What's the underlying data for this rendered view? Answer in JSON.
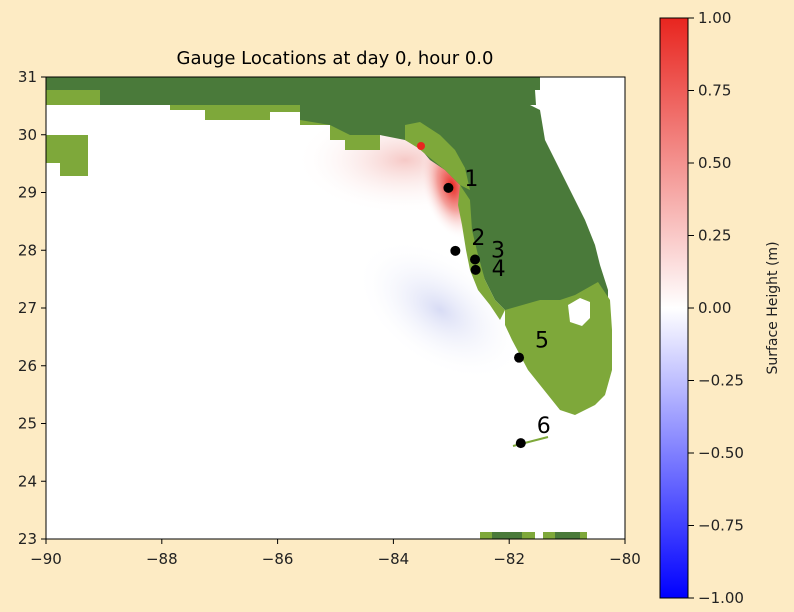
{
  "chart_data": {
    "type": "heatmap",
    "title": "Gauge Locations at day    0, hour 0.0",
    "xlim": [
      -90,
      -80
    ],
    "ylim": [
      23,
      31
    ],
    "x_ticks": [
      -90,
      -88,
      -86,
      -84,
      -82,
      -80
    ],
    "y_ticks": [
      23,
      24,
      25,
      26,
      27,
      28,
      29,
      30,
      31
    ],
    "x_tick_labels": [
      "−90",
      "−88",
      "−86",
      "−84",
      "−82",
      "−80"
    ],
    "y_tick_labels": [
      "23",
      "24",
      "25",
      "26",
      "27",
      "28",
      "29",
      "30",
      "31"
    ],
    "gauges": [
      {
        "label": "1",
        "lon": -83.05,
        "lat": 29.08
      },
      {
        "label": "2",
        "lon": -82.93,
        "lat": 27.99
      },
      {
        "label": "3",
        "lon": -82.59,
        "lat": 27.84
      },
      {
        "label": "4",
        "lon": -82.58,
        "lat": 27.66
      },
      {
        "label": "5",
        "lon": -81.83,
        "lat": 26.14
      },
      {
        "label": "6",
        "lon": -81.8,
        "lat": 24.66
      }
    ],
    "colorbar": {
      "label": "Surface Height (m)",
      "min": -1.0,
      "max": 1.0,
      "ticks": [
        1.0,
        0.75,
        0.5,
        0.25,
        0.0,
        -0.25,
        -0.5,
        -0.75,
        -1.0
      ],
      "tick_labels": [
        "1.00",
        "0.75",
        "0.50",
        "0.25",
        "0.00",
        "−0.25",
        "−0.50",
        "−0.75",
        "−1.00"
      ],
      "colormap": [
        "#0000ff",
        "#ffffff",
        "#ff0000"
      ]
    },
    "colors": {
      "land_dark": "#4a7a3a",
      "land_light": "#7ea83a",
      "surge_max": "#e8251f",
      "drawdown": "#dde0f6"
    }
  }
}
